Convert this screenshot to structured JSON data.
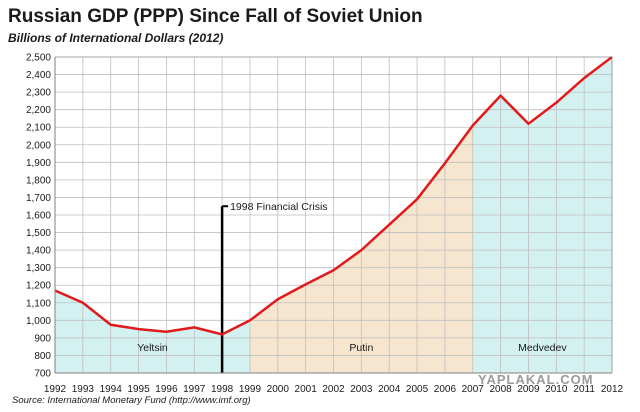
{
  "title": "Russian  GDP (PPP) Since Fall of Soviet Union",
  "subtitle": "Billions of International Dollars (2012)",
  "source": "Source: International Monetary Fund (http://www.imf.org)",
  "watermark": "YAPLAKAL.COM",
  "colors": {
    "line": "#e31a1c",
    "yeltsin_fill": "#d4f1f1",
    "putin_fill": "#f6e6cf",
    "medvedev_fill": "#d4f1f1",
    "grid": "#bfbfbf",
    "axis": "#808080",
    "annotation": "#000000"
  },
  "chart_data": {
    "type": "line",
    "title": "Russian  GDP (PPP) Since Fall of Soviet Union",
    "ylabel": "Billions of International Dollars (2012)",
    "xlabel": "",
    "x": [
      "1992",
      "1993",
      "1994",
      "1995",
      "1996",
      "1997",
      "1998",
      "1999",
      "2000",
      "2001",
      "2002",
      "2003",
      "2004",
      "2005",
      "2006",
      "2007",
      "2008",
      "2009",
      "2010",
      "2011",
      "2012"
    ],
    "series": [
      {
        "values": [
          1170,
          1100,
          975,
          950,
          935,
          960,
          920,
          1000,
          1120,
          1205,
          1285,
          1400,
          1545,
          1690,
          1895,
          2110,
          2280,
          2120,
          2240,
          2380,
          2525
        ]
      }
    ],
    "ylim": [
      700,
      2500
    ],
    "yticks": [
      700,
      800,
      900,
      1000,
      1100,
      1200,
      1300,
      1400,
      1500,
      1600,
      1700,
      1800,
      1900,
      2000,
      2100,
      2200,
      2300,
      2400,
      2500
    ],
    "ytick_labels": [
      "700",
      "800",
      "900",
      "1,000",
      "1,100",
      "1,200",
      "1,300",
      "1,400",
      "1,500",
      "1,600",
      "1,700",
      "1,800",
      "1,900",
      "2,000",
      "2,100",
      "2,200",
      "2,300",
      "2,400",
      "2,500"
    ],
    "grid": true,
    "eras": [
      {
        "label": "Yeltsin",
        "start": "1992",
        "end": "1999"
      },
      {
        "label": "Putin",
        "start": "1999",
        "end": "2007"
      },
      {
        "label": "Medvedev",
        "start": "2007",
        "end": "2012"
      }
    ],
    "annotations": [
      {
        "text": "1998 Financial Crisis",
        "x": "1998",
        "y_from": 700,
        "y_to": 1650
      }
    ]
  }
}
